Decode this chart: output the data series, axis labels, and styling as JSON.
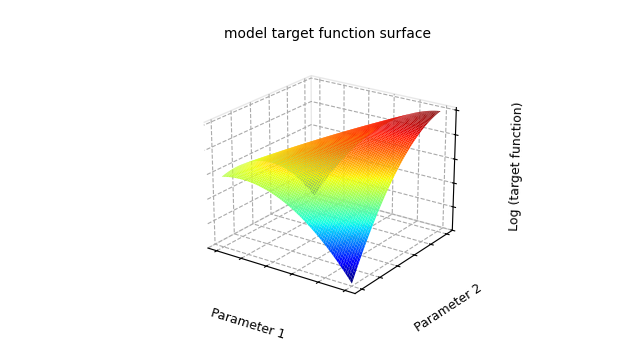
{
  "title": "model target function surface",
  "xlabel": "Parameter 1",
  "ylabel": "Parameter 2",
  "zlabel": "Log (target function)",
  "n_points": 80,
  "x_range": [
    0,
    1
  ],
  "y_range": [
    0,
    1
  ],
  "colormap": "jet",
  "elev": 22,
  "azim": -55,
  "bg_color": "white",
  "alpha": 1.0,
  "figsize": [
    6.4,
    3.6
  ],
  "dpi": 100,
  "ridge_sharpness": 8.0,
  "ridge_slope": 6.0,
  "c_cross": 4.0,
  "c_quad": 1.5
}
